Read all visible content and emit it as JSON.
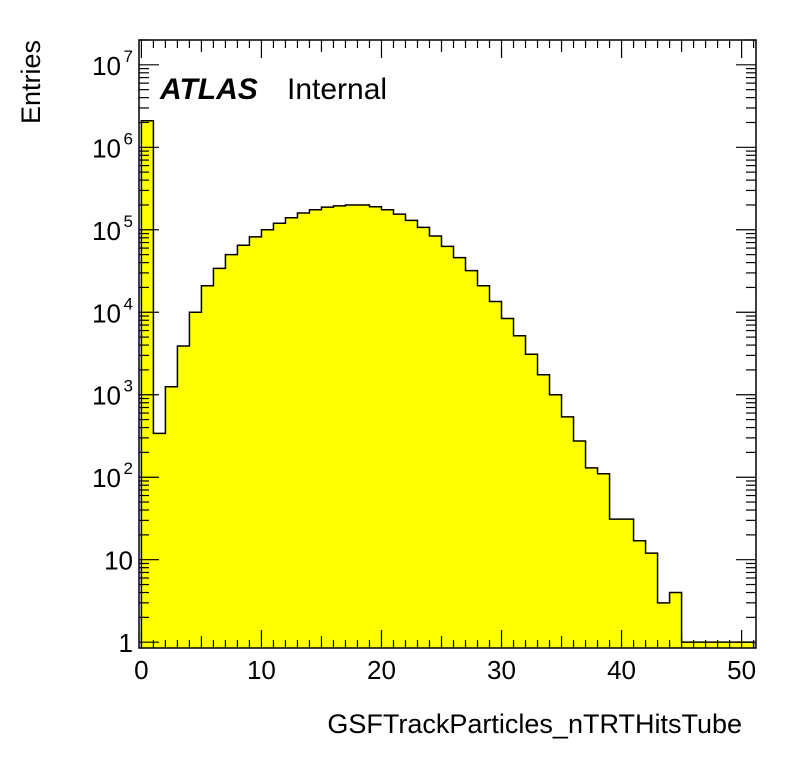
{
  "chart_data": {
    "type": "bar",
    "title": "",
    "xlabel": "GSFTrackParticles_nTRTHitsTube",
    "ylabel": "Entries",
    "log_y": true,
    "xlim": [
      -0.2,
      51.2
    ],
    "ylim": [
      0.85,
      20000000
    ],
    "bin_width": 1,
    "bin_edges_start": 0,
    "fill_color": "#ffff00",
    "line_color": "#000000",
    "x_ticks": [
      0,
      10,
      20,
      30,
      40,
      50
    ],
    "x_tick_labels": [
      "0",
      "10",
      "20",
      "30",
      "40",
      "50"
    ],
    "y_ticks": [
      {
        "value": 1,
        "base": "1",
        "exp": ""
      },
      {
        "value": 10,
        "base": "10",
        "exp": ""
      },
      {
        "value": 100,
        "base": "10",
        "exp": "2"
      },
      {
        "value": 1000,
        "base": "10",
        "exp": "3"
      },
      {
        "value": 10000,
        "base": "10",
        "exp": "4"
      },
      {
        "value": 100000,
        "base": "10",
        "exp": "5"
      },
      {
        "value": 1000000,
        "base": "10",
        "exp": "6"
      },
      {
        "value": 10000000,
        "base": "10",
        "exp": "7"
      }
    ],
    "values": [
      2100000,
      340,
      1250,
      3900,
      10000,
      21000,
      34000,
      50000,
      65000,
      82000,
      100000,
      120000,
      140000,
      160000,
      175000,
      188000,
      195000,
      200000,
      200000,
      190000,
      175000,
      155000,
      130000,
      107000,
      84000,
      63000,
      46000,
      32000,
      21000,
      13500,
      8400,
      5200,
      3100,
      1750,
      1000,
      540,
      275,
      130,
      110,
      31,
      31,
      17,
      12,
      3,
      4,
      1,
      1,
      1,
      1,
      1,
      1
    ]
  },
  "labels": {
    "atlas": "ATLAS",
    "status": "Internal"
  }
}
